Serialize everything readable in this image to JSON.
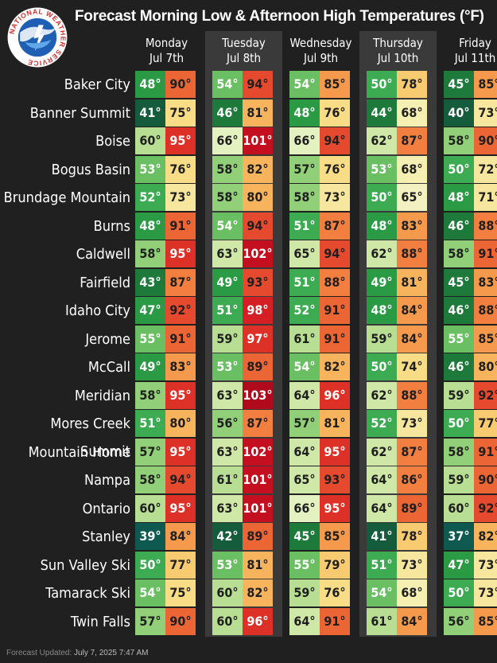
{
  "title": "Forecast Morning Low & Afternoon High Temperatures (°F)",
  "logo_text": "NATIONAL WEATHER SERVICE",
  "days": [
    {
      "day": "Monday",
      "date": "Jul 7th"
    },
    {
      "day": "Tuesday",
      "date": "Jul 8th"
    },
    {
      "day": "Wednesday",
      "date": "Jul 9th"
    },
    {
      "day": "Thursday",
      "date": "Jul 10th"
    },
    {
      "day": "Friday",
      "date": "Jul 11th"
    }
  ],
  "locations": [
    {
      "name": "Baker City",
      "temps": [
        [
          48,
          90
        ],
        [
          54,
          94
        ],
        [
          54,
          85
        ],
        [
          50,
          78
        ],
        [
          45,
          85
        ]
      ]
    },
    {
      "name": "Banner Summit",
      "temps": [
        [
          41,
          75
        ],
        [
          46,
          81
        ],
        [
          48,
          76
        ],
        [
          44,
          68
        ],
        [
          40,
          73
        ]
      ]
    },
    {
      "name": "Boise",
      "temps": [
        [
          60,
          95
        ],
        [
          66,
          101
        ],
        [
          66,
          94
        ],
        [
          62,
          87
        ],
        [
          58,
          90
        ]
      ]
    },
    {
      "name": "Bogus Basin",
      "temps": [
        [
          53,
          76
        ],
        [
          58,
          82
        ],
        [
          57,
          76
        ],
        [
          53,
          68
        ],
        [
          50,
          72
        ]
      ]
    },
    {
      "name": "Brundage Mountain",
      "temps": [
        [
          52,
          73
        ],
        [
          58,
          80
        ],
        [
          58,
          73
        ],
        [
          50,
          65
        ],
        [
          48,
          71
        ]
      ]
    },
    {
      "name": "Burns",
      "temps": [
        [
          48,
          91
        ],
        [
          54,
          94
        ],
        [
          51,
          87
        ],
        [
          48,
          83
        ],
        [
          46,
          88
        ]
      ]
    },
    {
      "name": "Caldwell",
      "temps": [
        [
          58,
          95
        ],
        [
          63,
          102
        ],
        [
          65,
          94
        ],
        [
          62,
          88
        ],
        [
          58,
          91
        ]
      ]
    },
    {
      "name": "Fairfield",
      "temps": [
        [
          43,
          87
        ],
        [
          49,
          93
        ],
        [
          51,
          88
        ],
        [
          49,
          81
        ],
        [
          45,
          83
        ]
      ]
    },
    {
      "name": "Idaho City",
      "temps": [
        [
          47,
          92
        ],
        [
          51,
          98
        ],
        [
          52,
          91
        ],
        [
          48,
          84
        ],
        [
          46,
          88
        ]
      ]
    },
    {
      "name": "Jerome",
      "temps": [
        [
          55,
          91
        ],
        [
          59,
          97
        ],
        [
          61,
          91
        ],
        [
          59,
          84
        ],
        [
          55,
          85
        ]
      ]
    },
    {
      "name": "McCall",
      "temps": [
        [
          49,
          83
        ],
        [
          53,
          89
        ],
        [
          54,
          82
        ],
        [
          50,
          74
        ],
        [
          46,
          80
        ]
      ]
    },
    {
      "name": "Meridian",
      "temps": [
        [
          58,
          95
        ],
        [
          63,
          103
        ],
        [
          64,
          96
        ],
        [
          62,
          88
        ],
        [
          59,
          92
        ]
      ]
    },
    {
      "name": "Mores Creek Summit",
      "temps": [
        [
          51,
          80
        ],
        [
          56,
          87
        ],
        [
          57,
          81
        ],
        [
          52,
          73
        ],
        [
          50,
          77
        ]
      ]
    },
    {
      "name": "Mountain Home",
      "temps": [
        [
          57,
          95
        ],
        [
          63,
          102
        ],
        [
          64,
          95
        ],
        [
          62,
          87
        ],
        [
          58,
          91
        ]
      ]
    },
    {
      "name": "Nampa",
      "temps": [
        [
          58,
          94
        ],
        [
          61,
          101
        ],
        [
          65,
          93
        ],
        [
          64,
          86
        ],
        [
          59,
          90
        ]
      ]
    },
    {
      "name": "Ontario",
      "temps": [
        [
          60,
          95
        ],
        [
          63,
          101
        ],
        [
          66,
          95
        ],
        [
          64,
          89
        ],
        [
          60,
          92
        ]
      ]
    },
    {
      "name": "Stanley",
      "temps": [
        [
          39,
          84
        ],
        [
          42,
          89
        ],
        [
          45,
          85
        ],
        [
          41,
          78
        ],
        [
          37,
          82
        ]
      ]
    },
    {
      "name": "Sun Valley Ski",
      "temps": [
        [
          50,
          77
        ],
        [
          53,
          81
        ],
        [
          55,
          79
        ],
        [
          51,
          73
        ],
        [
          47,
          73
        ]
      ]
    },
    {
      "name": "Tamarack Ski",
      "temps": [
        [
          54,
          75
        ],
        [
          60,
          82
        ],
        [
          59,
          76
        ],
        [
          54,
          68
        ],
        [
          50,
          73
        ]
      ]
    },
    {
      "name": "Twin Falls",
      "temps": [
        [
          57,
          90
        ],
        [
          60,
          96
        ],
        [
          64,
          91
        ],
        [
          61,
          84
        ],
        [
          56,
          85
        ]
      ]
    }
  ],
  "footer": {
    "label": "Forecast Updated:",
    "value": "July 7, 2025 7:47 AM"
  }
}
